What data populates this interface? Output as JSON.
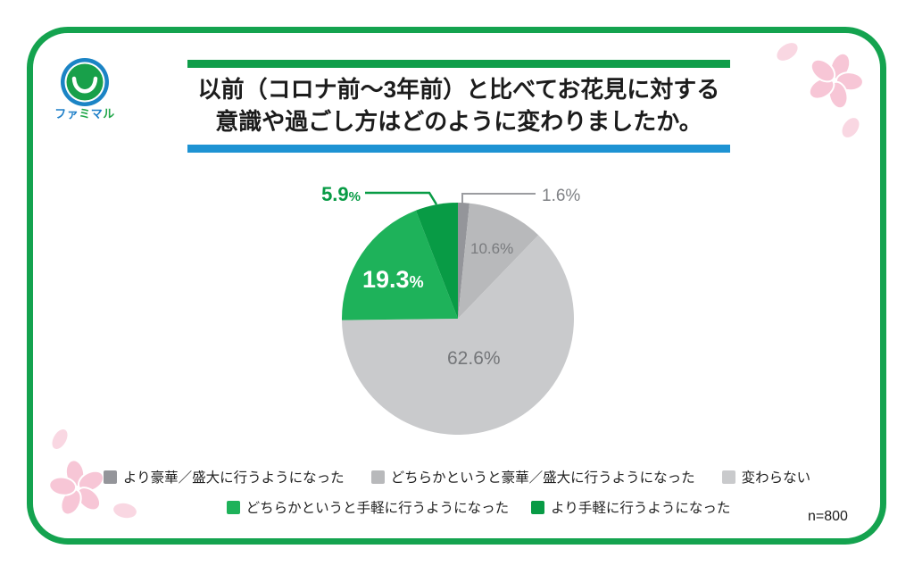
{
  "logo": {
    "name": "ファミマル",
    "chars": [
      {
        "ch": "フ",
        "color": "#1E7FC8"
      },
      {
        "ch": "ァ",
        "color": "#1E7FC8"
      },
      {
        "ch": "ミ",
        "color": "#21A649"
      },
      {
        "ch": "マ",
        "color": "#1E7FC8"
      },
      {
        "ch": "ル",
        "color": "#21A649"
      }
    ]
  },
  "title": {
    "line1": "以前（コロナ前～3年前）と比べてお花見に対する",
    "line2": "意識や過ごし方はどのように変わりましたか。"
  },
  "sample_size": "n=800",
  "chart_data": {
    "type": "pie",
    "title": "以前（コロナ前～3年前）と比べてお花見に対する意識や過ごし方はどのように変わりましたか。",
    "unit": "%",
    "sample_size": "n=800",
    "start_angle": "12-oclock",
    "direction": "clockwise",
    "percent_sign": "%",
    "slices": [
      {
        "label": "より豪華／盛大に行うようになった",
        "value": 1.6,
        "display": "1.6%",
        "color": "#94959A",
        "label_style": "outside-callout"
      },
      {
        "label": "どちらかというと豪華／盛大に行うようになった",
        "value": 10.6,
        "display": "10.6%",
        "color": "#B8B9BB",
        "label_style": "inside"
      },
      {
        "label": "変わらない",
        "value": 62.6,
        "display": "62.6%",
        "color": "#C9CACC",
        "label_style": "inside"
      },
      {
        "label": "どちらかというと手軽に行うようになった",
        "value": 19.3,
        "display": "19.3",
        "color": "#1EB25A",
        "label_style": "inside-bold-white"
      },
      {
        "label": "より手軽に行うようになった",
        "value": 5.9,
        "display": "5.9",
        "color": "#089B45",
        "label_style": "outside-callout"
      }
    ],
    "legend_rows": [
      [
        0,
        1,
        2
      ],
      [
        3,
        4
      ]
    ],
    "callout_line_gray": "#9B9CA0"
  },
  "decor": {
    "flower_pink": "#F7C6D6",
    "petal_pink": "#F9D7E2"
  }
}
